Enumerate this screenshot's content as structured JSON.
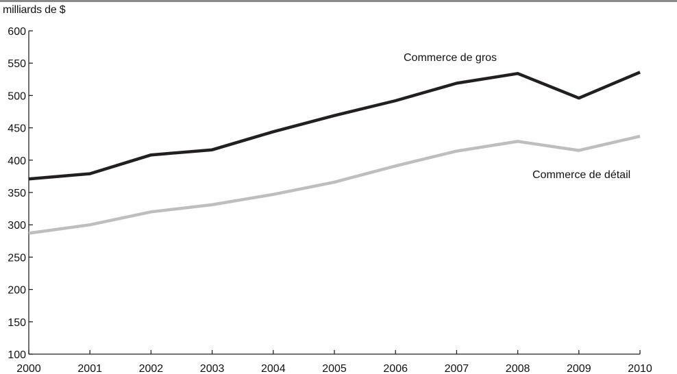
{
  "chart_data": {
    "type": "line",
    "unit_label": "milliards de $",
    "x": [
      "2000",
      "2001",
      "2002",
      "2003",
      "2004",
      "2005",
      "2006",
      "2007",
      "2008",
      "2009",
      "2010"
    ],
    "ylim": [
      100,
      600
    ],
    "yticks": [
      "100",
      "150",
      "200",
      "250",
      "300",
      "350",
      "400",
      "450",
      "500",
      "550",
      "600"
    ],
    "grid": false,
    "series": [
      {
        "name": "Commerce de gros",
        "color": "#231f20",
        "values": [
          371,
          379,
          408,
          416,
          444,
          469,
          492,
          519,
          534,
          496,
          536
        ]
      },
      {
        "name": "Commerce de détail",
        "color": "#bcbec0",
        "values": [
          287,
          300,
          320,
          331,
          347,
          366,
          391,
          414,
          429,
          415,
          437
        ]
      }
    ]
  }
}
